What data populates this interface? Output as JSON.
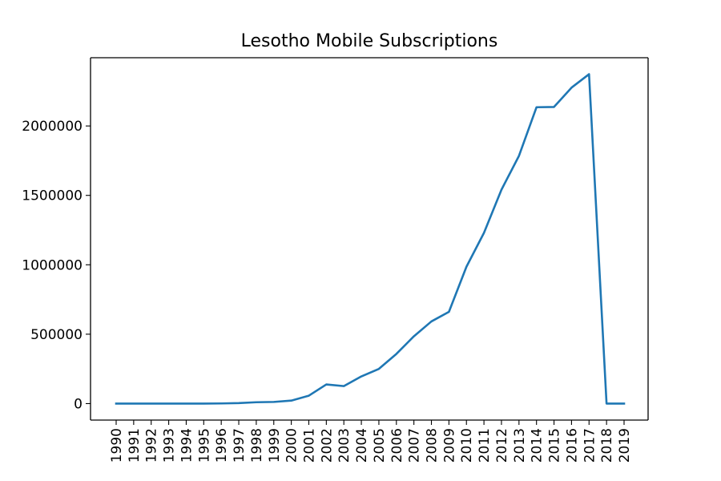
{
  "chart_data": {
    "type": "line",
    "title": "Lesotho Mobile Subscriptions",
    "xlabel": "",
    "ylabel": "",
    "x_tick_rotation": "vertical",
    "grid": false,
    "legend": "none",
    "categories": [
      "1990",
      "1991",
      "1992",
      "1993",
      "1994",
      "1995",
      "1996",
      "1997",
      "1998",
      "1999",
      "2000",
      "2001",
      "2002",
      "2003",
      "2004",
      "2005",
      "2006",
      "2007",
      "2008",
      "2009",
      "2010",
      "2011",
      "2012",
      "2013",
      "2014",
      "2015",
      "2016",
      "2017",
      "2018",
      "2019"
    ],
    "series": [
      {
        "color": "#1f77b4",
        "values": [
          0,
          0,
          0,
          0,
          0,
          0,
          1262,
          3500,
          9831,
          12000,
          21600,
          57000,
          138000,
          126000,
          196000,
          250000,
          358000,
          485000,
          592000,
          661000,
          986000,
          1230000,
          1541000,
          1785000,
          2135000,
          2137000,
          2276000,
          2373000,
          0,
          0
        ]
      }
    ],
    "ylim": [
      -118650,
      2491650
    ],
    "yticks": [
      0,
      500000,
      1000000,
      1500000,
      2000000
    ],
    "ytick_labels": [
      "0",
      "500000",
      "1000000",
      "1500000",
      "2000000"
    ]
  }
}
